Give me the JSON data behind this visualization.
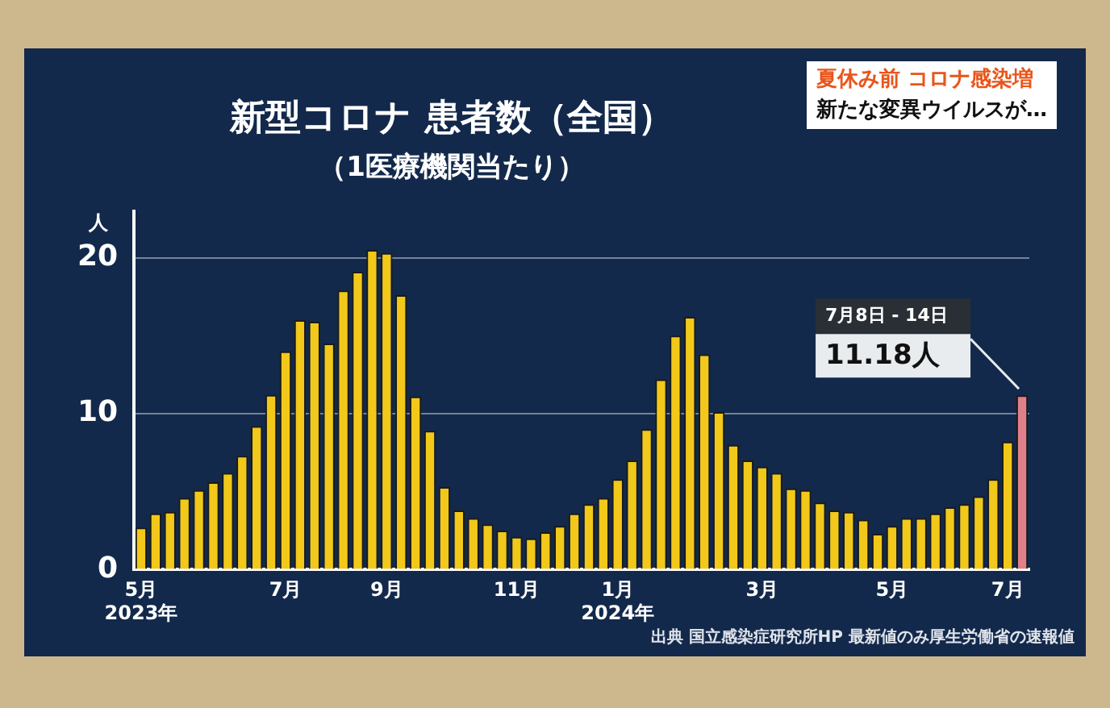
{
  "chart_data": {
    "type": "bar",
    "title": "新型コロナ 患者数（全国）",
    "subtitle": "（1医療機関当たり）",
    "ylabel": "人",
    "categories": [
      "5月\n2023年",
      null,
      null,
      null,
      null,
      null,
      null,
      null,
      null,
      null,
      "7月",
      null,
      null,
      null,
      null,
      null,
      null,
      "9月",
      null,
      null,
      null,
      null,
      null,
      null,
      null,
      null,
      "11月",
      null,
      null,
      null,
      null,
      null,
      null,
      "1月\n2024年",
      null,
      null,
      null,
      null,
      null,
      null,
      null,
      null,
      null,
      "3月",
      null,
      null,
      null,
      null,
      null,
      null,
      null,
      null,
      "5月",
      null,
      null,
      null,
      null,
      null,
      null,
      null,
      "7月",
      null
    ],
    "values": [
      2.7,
      3.6,
      3.7,
      4.6,
      5.1,
      5.6,
      6.2,
      7.3,
      9.2,
      11.2,
      14.0,
      16.0,
      15.9,
      14.5,
      17.9,
      19.1,
      20.5,
      20.3,
      17.6,
      11.1,
      8.9,
      5.3,
      3.8,
      3.3,
      2.9,
      2.5,
      2.1,
      2.0,
      2.4,
      2.8,
      3.6,
      4.2,
      4.6,
      5.8,
      7.0,
      9.0,
      12.2,
      15.0,
      16.2,
      13.8,
      10.1,
      8.0,
      7.0,
      6.6,
      6.2,
      5.2,
      5.1,
      4.3,
      3.8,
      3.7,
      3.2,
      2.3,
      2.8,
      3.3,
      3.3,
      3.6,
      4.0,
      4.2,
      4.7,
      5.8,
      8.2,
      11.18
    ],
    "colors": [
      "#f2c81a",
      "#f2c81a",
      "#f2c81a",
      "#f2c81a",
      "#f2c81a",
      "#f2c81a",
      "#f2c81a",
      "#f2c81a",
      "#f2c81a",
      "#f2c81a",
      "#f2c81a",
      "#f2c81a",
      "#f2c81a",
      "#f2c81a",
      "#f2c81a",
      "#f2c81a",
      "#f2c81a",
      "#f2c81a",
      "#f2c81a",
      "#f2c81a",
      "#f2c81a",
      "#f2c81a",
      "#f2c81a",
      "#f2c81a",
      "#f2c81a",
      "#f2c81a",
      "#f2c81a",
      "#f2c81a",
      "#f2c81a",
      "#f2c81a",
      "#f2c81a",
      "#f2c81a",
      "#f2c81a",
      "#f2c81a",
      "#f2c81a",
      "#f2c81a",
      "#f2c81a",
      "#f2c81a",
      "#f2c81a",
      "#f2c81a",
      "#f2c81a",
      "#f2c81a",
      "#f2c81a",
      "#f2c81a",
      "#f2c81a",
      "#f2c81a",
      "#f2c81a",
      "#f2c81a",
      "#f2c81a",
      "#f2c81a",
      "#f2c81a",
      "#f2c81a",
      "#f2c81a",
      "#f2c81a",
      "#f2c81a",
      "#f2c81a",
      "#f2c81a",
      "#f2c81a",
      "#f2c81a",
      "#f2c81a",
      "#f2c81a",
      "#e0808a"
    ],
    "value_labels": [
      null,
      null,
      null,
      null,
      null,
      null,
      null,
      null,
      null,
      null,
      null,
      null,
      null,
      null,
      null,
      null,
      null,
      null,
      null,
      null,
      null,
      null,
      null,
      null,
      null,
      null,
      null,
      null,
      null,
      null,
      null,
      null,
      null,
      null,
      null,
      null,
      null,
      null,
      null,
      null,
      null,
      null,
      null,
      null,
      null,
      null,
      null,
      null,
      null,
      null,
      null,
      null,
      null,
      null,
      null,
      null,
      null,
      null,
      null,
      null,
      null,
      "11.18人"
    ],
    "ylim": [
      0,
      23
    ],
    "yticks": [
      0,
      10,
      20
    ],
    "grid": "y",
    "legend": false,
    "annotations": [
      "夏休み前 コロナ感染増",
      "新たな変異ウイルスが…",
      "出典 国立感染症研究所HP 最新値のみ厚生労働省の速報値",
      "7月8日 - 14日"
    ]
  }
}
